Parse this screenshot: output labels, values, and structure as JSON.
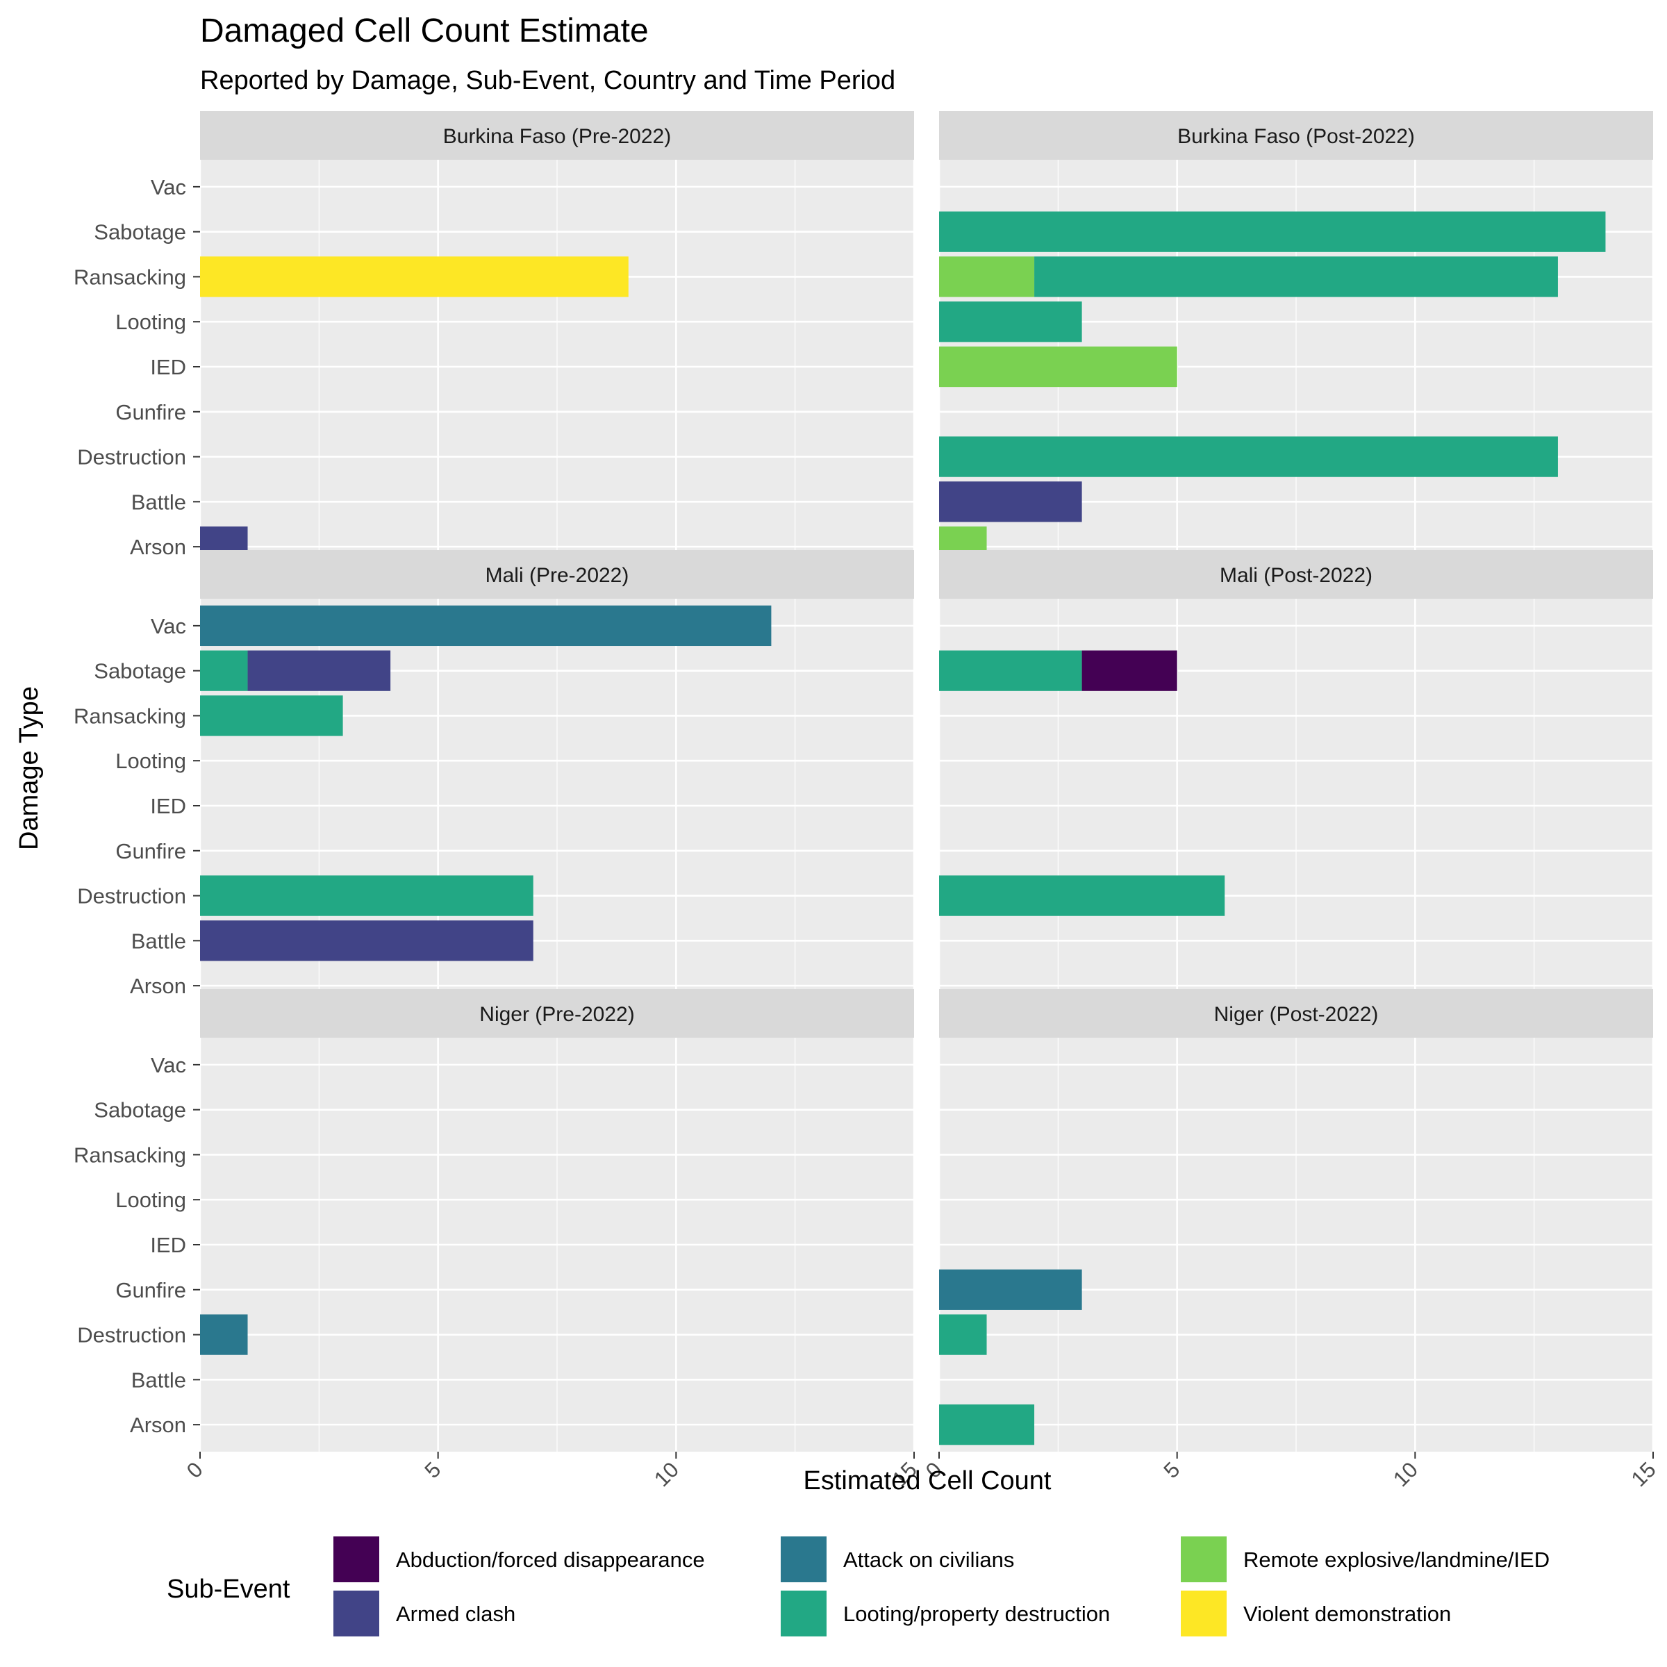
{
  "chart_data": {
    "type": "bar",
    "orientation": "horizontal",
    "stacked": true,
    "title": "Damaged Cell Count Estimate",
    "subtitle": "Reported by Damage, Sub-Event, Country and Time Period",
    "xlabel": "Estimated Cell Count",
    "ylabel": "Damage Type",
    "xlim": [
      0,
      15
    ],
    "x_ticks": [
      "0",
      "5",
      "10",
      "15"
    ],
    "grid": true,
    "categories": [
      "Vac",
      "Sabotage",
      "Ransacking",
      "Looting",
      "IED",
      "Gunfire",
      "Destruction",
      "Battle",
      "Arson"
    ],
    "legend": {
      "title": "Sub-Event",
      "position": "bottom",
      "items": [
        {
          "name": "Abduction/forced disappearance",
          "color": "#440154"
        },
        {
          "name": "Armed clash",
          "color": "#414487"
        },
        {
          "name": "Attack on civilians",
          "color": "#2A788E"
        },
        {
          "name": "Looting/property destruction",
          "color": "#22A884"
        },
        {
          "name": "Remote explosive/landmine/IED",
          "color": "#7AD151"
        },
        {
          "name": "Violent demonstration",
          "color": "#FDE725"
        }
      ]
    },
    "panels": [
      {
        "label": "Burkina Faso (Pre-2022)",
        "bars": [
          {
            "category": "Ransacking",
            "segments": [
              {
                "event": "Violent demonstration",
                "value": 9
              }
            ]
          },
          {
            "category": "Arson",
            "segments": [
              {
                "event": "Armed clash",
                "value": 1
              }
            ]
          }
        ]
      },
      {
        "label": "Burkina Faso (Post-2022)",
        "bars": [
          {
            "category": "Sabotage",
            "segments": [
              {
                "event": "Looting/property destruction",
                "value": 14
              }
            ]
          },
          {
            "category": "Ransacking",
            "segments": [
              {
                "event": "Remote explosive/landmine/IED",
                "value": 2
              },
              {
                "event": "Looting/property destruction",
                "value": 11
              }
            ]
          },
          {
            "category": "Looting",
            "segments": [
              {
                "event": "Looting/property destruction",
                "value": 3
              }
            ]
          },
          {
            "category": "IED",
            "segments": [
              {
                "event": "Remote explosive/landmine/IED",
                "value": 5
              }
            ]
          },
          {
            "category": "Destruction",
            "segments": [
              {
                "event": "Looting/property destruction",
                "value": 13
              }
            ]
          },
          {
            "category": "Battle",
            "segments": [
              {
                "event": "Armed clash",
                "value": 3
              }
            ]
          },
          {
            "category": "Arson",
            "segments": [
              {
                "event": "Remote explosive/landmine/IED",
                "value": 1
              }
            ]
          }
        ]
      },
      {
        "label": "Mali (Pre-2022)",
        "bars": [
          {
            "category": "Vac",
            "segments": [
              {
                "event": "Attack on civilians",
                "value": 12
              }
            ]
          },
          {
            "category": "Sabotage",
            "segments": [
              {
                "event": "Looting/property destruction",
                "value": 1
              },
              {
                "event": "Armed clash",
                "value": 3
              }
            ]
          },
          {
            "category": "Ransacking",
            "segments": [
              {
                "event": "Looting/property destruction",
                "value": 3
              }
            ]
          },
          {
            "category": "Destruction",
            "segments": [
              {
                "event": "Looting/property destruction",
                "value": 7
              }
            ]
          },
          {
            "category": "Battle",
            "segments": [
              {
                "event": "Armed clash",
                "value": 7
              }
            ]
          }
        ]
      },
      {
        "label": "Mali (Post-2022)",
        "bars": [
          {
            "category": "Sabotage",
            "segments": [
              {
                "event": "Looting/property destruction",
                "value": 3
              },
              {
                "event": "Abduction/forced disappearance",
                "value": 2
              }
            ]
          },
          {
            "category": "Destruction",
            "segments": [
              {
                "event": "Looting/property destruction",
                "value": 6
              }
            ]
          }
        ]
      },
      {
        "label": "Niger (Pre-2022)",
        "bars": [
          {
            "category": "Destruction",
            "segments": [
              {
                "event": "Attack on civilians",
                "value": 1
              }
            ]
          }
        ]
      },
      {
        "label": "Niger (Post-2022)",
        "bars": [
          {
            "category": "Gunfire",
            "segments": [
              {
                "event": "Attack on civilians",
                "value": 3
              }
            ]
          },
          {
            "category": "Destruction",
            "segments": [
              {
                "event": "Looting/property destruction",
                "value": 1
              }
            ]
          },
          {
            "category": "Arson",
            "segments": [
              {
                "event": "Looting/property destruction",
                "value": 2
              }
            ]
          }
        ]
      }
    ]
  }
}
